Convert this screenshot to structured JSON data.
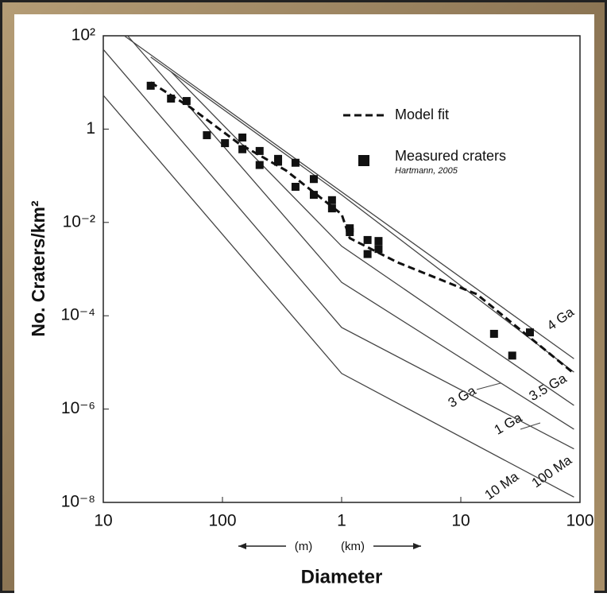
{
  "chart_data": {
    "type": "line",
    "y_label": "No. Craters/km²",
    "x_label": "Diameter",
    "annotations": [
      "(m)",
      "(km)"
    ],
    "xlog": true,
    "ylog": true,
    "xlim": [
      10,
      100000
    ],
    "ylim": [
      1e-08,
      100
    ],
    "xticks": [
      10,
      100,
      {
        "value": 1000,
        "label": "1"
      },
      {
        "value": 10000,
        "label": "10"
      },
      {
        "value": 100000,
        "label": "100"
      }
    ],
    "yticks": [
      {
        "value": 100,
        "label": "10²"
      },
      1,
      {
        "value": 0.01,
        "label": "10⁻²"
      },
      {
        "value": 0.0001,
        "label": "10⁻⁴"
      },
      {
        "value": 1e-06,
        "label": "10⁻⁶"
      },
      {
        "value": 1e-08,
        "label": "10⁻⁸"
      }
    ],
    "series": [
      {
        "name": "4 Ga",
        "color": "#444444",
        "line_style": "solid",
        "in_legend": false,
        "x": [
          15,
          89000
        ],
        "values": [
          100,
          1.2e-05
        ]
      },
      {
        "name": "3.5 Ga",
        "color": "#444444",
        "line_style": "solid",
        "in_legend": false,
        "x": [
          25,
          1000,
          89000
        ],
        "values": [
          35,
          0.039,
          6.2e-06
        ]
      },
      {
        "name": "3 Ga",
        "color": "#444444",
        "line_style": "solid",
        "in_legend": false,
        "x": [
          37,
          1000,
          89000
        ],
        "values": [
          17,
          0.0031,
          1.2e-06
        ]
      },
      {
        "name": "1 Ga",
        "color": "#444444",
        "line_style": "solid",
        "in_legend": false,
        "x": [
          16,
          1000,
          89000
        ],
        "values": [
          100,
          0.00052,
          3.7e-07
        ]
      },
      {
        "name": "100 Ma",
        "color": "#444444",
        "line_style": "solid",
        "in_legend": false,
        "x": [
          10,
          1000,
          89000
        ],
        "values": [
          51,
          5.6e-05,
          1.4e-07
        ]
      },
      {
        "name": "10 Ma",
        "color": "#444444",
        "line_style": "solid",
        "in_legend": false,
        "x": [
          10,
          1000,
          89000
        ],
        "values": [
          5.3,
          5.8e-06,
          1.3e-08
        ]
      },
      {
        "name": "Model fit",
        "color": "#111111",
        "line_style": "dashed",
        "in_legend": true,
        "x": [
          25,
          54,
          136,
          341,
          1000,
          1170,
          2930,
          13600,
          89000
        ],
        "values": [
          10,
          2.9,
          0.5,
          0.13,
          0.015,
          0.0046,
          0.0014,
          0.00029,
          5.8e-06
        ]
      },
      {
        "name": "Measured craters",
        "source": "Hartmann, 2005",
        "color": "#111111",
        "line_style": "none",
        "marker": "square",
        "in_legend": true,
        "x": [
          25,
          37,
          50,
          74,
          105,
          147,
          147,
          205,
          205,
          293,
          293,
          410,
          410,
          584,
          584,
          830,
          830,
          1170,
          1170,
          1650,
          1650,
          2040,
          2040,
          19000,
          27000,
          38000
        ],
        "values": [
          8.5,
          4.5,
          4.0,
          0.74,
          0.5,
          0.66,
          0.37,
          0.34,
          0.17,
          0.23,
          0.2,
          0.19,
          0.058,
          0.085,
          0.039,
          0.03,
          0.02,
          0.0075,
          0.0062,
          0.0042,
          0.0021,
          0.004,
          0.0027,
          4.1e-05,
          1.4e-05,
          4.4e-05
        ]
      }
    ]
  }
}
